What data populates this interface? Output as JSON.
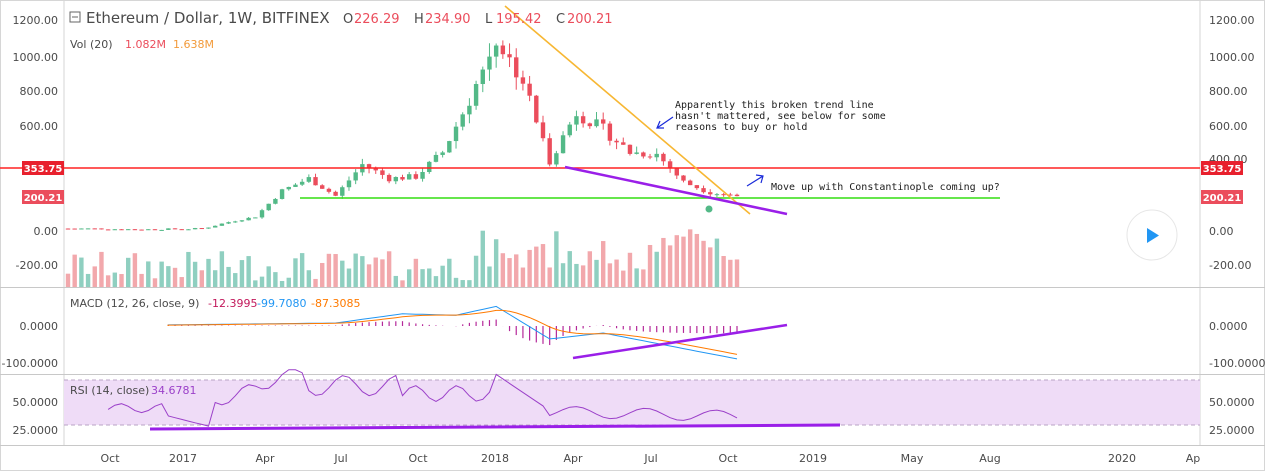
{
  "header": {
    "title": "Ethereum / Dollar, 1W, BITFINEX",
    "ohlc": [
      {
        "k": "O",
        "v": "226.29"
      },
      {
        "k": "H",
        "v": "234.90"
      },
      {
        "k": "L",
        "v": "195.42"
      },
      {
        "k": "C",
        "v": "200.21"
      }
    ],
    "vol_label": "Vol (20)",
    "vol_a": "1.082M",
    "vol_b": "1.638M"
  },
  "colors": {
    "up": "#53b987",
    "down": "#eb4d5c",
    "vol_up": "#8fcfc0",
    "vol_down": "#f2a8ac",
    "resistance": "#ff2222",
    "support": "#33dd11",
    "trend_down": "#f7b733",
    "trend_purple": "#9a1fe8",
    "macd": "#2196f3",
    "signal": "#ff7a00",
    "hist": "#b5289a",
    "rsi": "#9b40c9",
    "rsi_band": "#efdcf7",
    "play_button": "#2196f3"
  },
  "annotations": {
    "note1": [
      "Apparently this broken trend line",
      "hasn't mattered, see below for some",
      "reasons to buy or hold"
    ],
    "note2": "Move up with Constantinople coming up?"
  },
  "price_tags": {
    "resistance": "353.75",
    "last": "200.21"
  },
  "price_axis": [
    "1200.00",
    "1000.00",
    "800.00",
    "600.00",
    "400.00",
    "0.00",
    "-200.00"
  ],
  "macd": {
    "label": "MACD (12, 26, close, 9)",
    "hist": "-12.3995",
    "macd": "-99.7080",
    "signal": "-87.3085",
    "axis": [
      "0.0000",
      "-100.0000"
    ]
  },
  "rsi": {
    "label": "RSI (14, close)",
    "value": "34.6781",
    "axis": [
      "50.0000",
      "25.0000"
    ]
  },
  "time_axis": [
    "Oct",
    "2017",
    "Apr",
    "Jul",
    "Oct",
    "2018",
    "Apr",
    "Jul",
    "Oct",
    "2019",
    "May",
    "Aug",
    "2020",
    "Ap"
  ],
  "chart_data": {
    "type": "candlestick",
    "title": "Ethereum / Dollar, 1W, BITFINEX",
    "ohlc_last": {
      "open": 226.29,
      "high": 234.9,
      "low": 195.42,
      "close": 200.21
    },
    "price_range": [
      -350,
      1300
    ],
    "horizontal_levels": {
      "resistance": 353.75,
      "support": 180
    },
    "close_series": [
      {
        "x": "2016-09",
        "y": 13
      },
      {
        "x": "2016-10",
        "y": 12
      },
      {
        "x": "2016-11",
        "y": 9
      },
      {
        "x": "2016-12",
        "y": 8
      },
      {
        "x": "2017-01",
        "y": 10
      },
      {
        "x": "2017-02",
        "y": 12
      },
      {
        "x": "2017-03",
        "y": 50
      },
      {
        "x": "2017-04",
        "y": 80
      },
      {
        "x": "2017-05",
        "y": 230
      },
      {
        "x": "2017-06",
        "y": 300
      },
      {
        "x": "2017-07",
        "y": 200
      },
      {
        "x": "2017-08",
        "y": 380
      },
      {
        "x": "2017-09",
        "y": 300
      },
      {
        "x": "2017-10",
        "y": 310
      },
      {
        "x": "2017-11",
        "y": 450
      },
      {
        "x": "2017-12",
        "y": 750
      },
      {
        "x": "2018-01",
        "y": 1100
      },
      {
        "x": "2018-02",
        "y": 860
      },
      {
        "x": "2018-03",
        "y": 400
      },
      {
        "x": "2018-04",
        "y": 680
      },
      {
        "x": "2018-05",
        "y": 580
      },
      {
        "x": "2018-06",
        "y": 450
      },
      {
        "x": "2018-07",
        "y": 440
      },
      {
        "x": "2018-08",
        "y": 280
      },
      {
        "x": "2018-09",
        "y": 220
      },
      {
        "x": "2018-10",
        "y": 200
      }
    ],
    "macd_series": {
      "macd_last": -99.708,
      "signal_last": -87.3085,
      "hist_last": -12.3995,
      "range": [
        -110,
        60
      ]
    },
    "rsi_series": {
      "last": 34.6781,
      "bands": [
        70,
        30
      ],
      "range": [
        20,
        85
      ]
    }
  }
}
